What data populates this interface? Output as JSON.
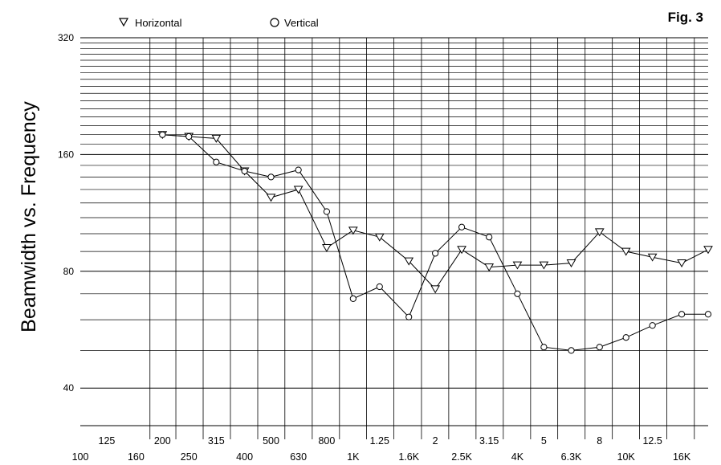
{
  "figure_label": "Fig. 3",
  "chart_data": {
    "type": "line",
    "title": "",
    "ylabel": "Beamwidth vs. Frequency",
    "xlabel": "",
    "x_scale": "log",
    "y_scale": "log",
    "xlim": [
      100,
      20000
    ],
    "ylim": [
      32,
      320
    ],
    "y_ticks": [
      40,
      80,
      160,
      320
    ],
    "x_ticks_upper": [
      "125",
      "200",
      "315",
      "500",
      "800",
      "1.25",
      "2",
      "3.15",
      "5",
      "8",
      "12.5"
    ],
    "x_ticks_lower": [
      "100",
      "160",
      "250",
      "400",
      "630",
      "1K",
      "1.6K",
      "2.5K",
      "4K",
      "6.3K",
      "10K",
      "16K"
    ],
    "legend_position": "top",
    "grid": true,
    "x": [
      200,
      250,
      315,
      400,
      500,
      630,
      800,
      1000,
      1250,
      1600,
      2000,
      2500,
      3150,
      4000,
      5000,
      6300,
      8000,
      10000,
      12500,
      16000,
      20000
    ],
    "series": [
      {
        "name": "Horizontal",
        "marker": "triangle-down",
        "values": [
          180,
          178,
          176,
          145,
          124,
          130,
          92,
          102,
          98,
          85,
          72,
          91,
          82,
          83,
          83,
          84,
          101,
          90,
          87,
          84,
          91
        ]
      },
      {
        "name": "Vertical",
        "marker": "circle",
        "values": [
          180,
          178,
          153,
          145,
          140,
          146,
          114,
          68,
          73,
          61,
          89,
          104,
          98,
          70,
          51,
          50,
          51,
          54,
          58,
          62,
          62
        ]
      }
    ]
  }
}
